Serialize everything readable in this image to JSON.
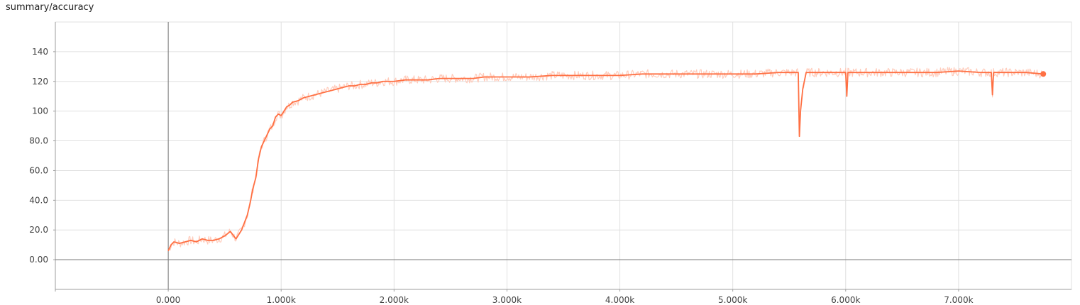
{
  "chart_data": {
    "type": "line",
    "title": "summary/accuracy",
    "xlabel": "",
    "ylabel": "",
    "xlim": [
      -1000,
      8000
    ],
    "ylim": [
      -20,
      160
    ],
    "x_ticks": [
      0,
      1000,
      2000,
      3000,
      4000,
      5000,
      6000,
      7000
    ],
    "x_tick_labels": [
      "0.000",
      "1.000k",
      "2.000k",
      "3.000k",
      "4.000k",
      "5.000k",
      "6.000k",
      "7.000k"
    ],
    "y_ticks": [
      0,
      20,
      40,
      60,
      80,
      100,
      120,
      140
    ],
    "y_tick_labels": [
      "0.00",
      "20.0",
      "40.0",
      "60.0",
      "80.0",
      "100",
      "120",
      "140"
    ],
    "grid": true,
    "colors": {
      "smoothed": "#ff7043",
      "raw": "#ffccbc",
      "grid": "#e0e0e0",
      "axis": "#9e9e9e"
    },
    "series": [
      {
        "x": [
          0,
          25,
          50,
          100,
          150,
          200,
          250,
          300,
          350,
          400,
          450,
          500,
          550,
          600,
          650,
          700,
          725,
          750,
          775,
          800,
          825,
          850,
          875,
          900,
          925,
          950,
          975,
          1000,
          1025,
          1050,
          1075,
          1100,
          1150,
          1200,
          1250,
          1300,
          1350,
          1400,
          1450,
          1500,
          1550,
          1600,
          1650,
          1700,
          1750,
          1800,
          1850,
          1900,
          1950,
          2000,
          2100,
          2200,
          2300,
          2400,
          2500,
          2600,
          2700,
          2800,
          2900,
          3000,
          3200,
          3400,
          3600,
          3800,
          4000,
          4200,
          4400,
          4600,
          4800,
          5000,
          5200,
          5400,
          5580,
          5590,
          5600,
          5620,
          5650,
          5700,
          5800,
          5900,
          6000,
          6010,
          6020,
          6100,
          6200,
          6400,
          6600,
          6800,
          7000,
          7200,
          7290,
          7300,
          7310,
          7400,
          7600,
          7750
        ],
        "values": [
          6,
          10,
          12,
          11,
          12,
          13,
          12,
          14,
          13,
          13,
          14,
          16,
          19,
          14,
          20,
          30,
          38,
          48,
          55,
          68,
          76,
          80,
          84,
          88,
          90,
          96,
          98,
          97,
          100,
          103,
          104,
          106,
          107,
          109,
          110,
          111,
          112,
          113,
          114,
          115,
          116,
          117,
          117,
          118,
          118,
          119,
          119,
          120,
          120,
          120,
          121,
          121,
          121,
          122,
          122,
          122,
          122,
          123,
          123,
          123,
          123,
          124,
          124,
          124,
          124,
          125,
          125,
          125,
          125,
          125,
          125,
          126,
          126,
          83,
          100,
          115,
          126,
          126,
          126,
          126,
          126,
          110,
          126,
          126,
          126,
          126,
          126,
          126,
          127,
          126,
          126,
          111,
          126,
          126,
          126,
          125
        ]
      }
    ]
  }
}
